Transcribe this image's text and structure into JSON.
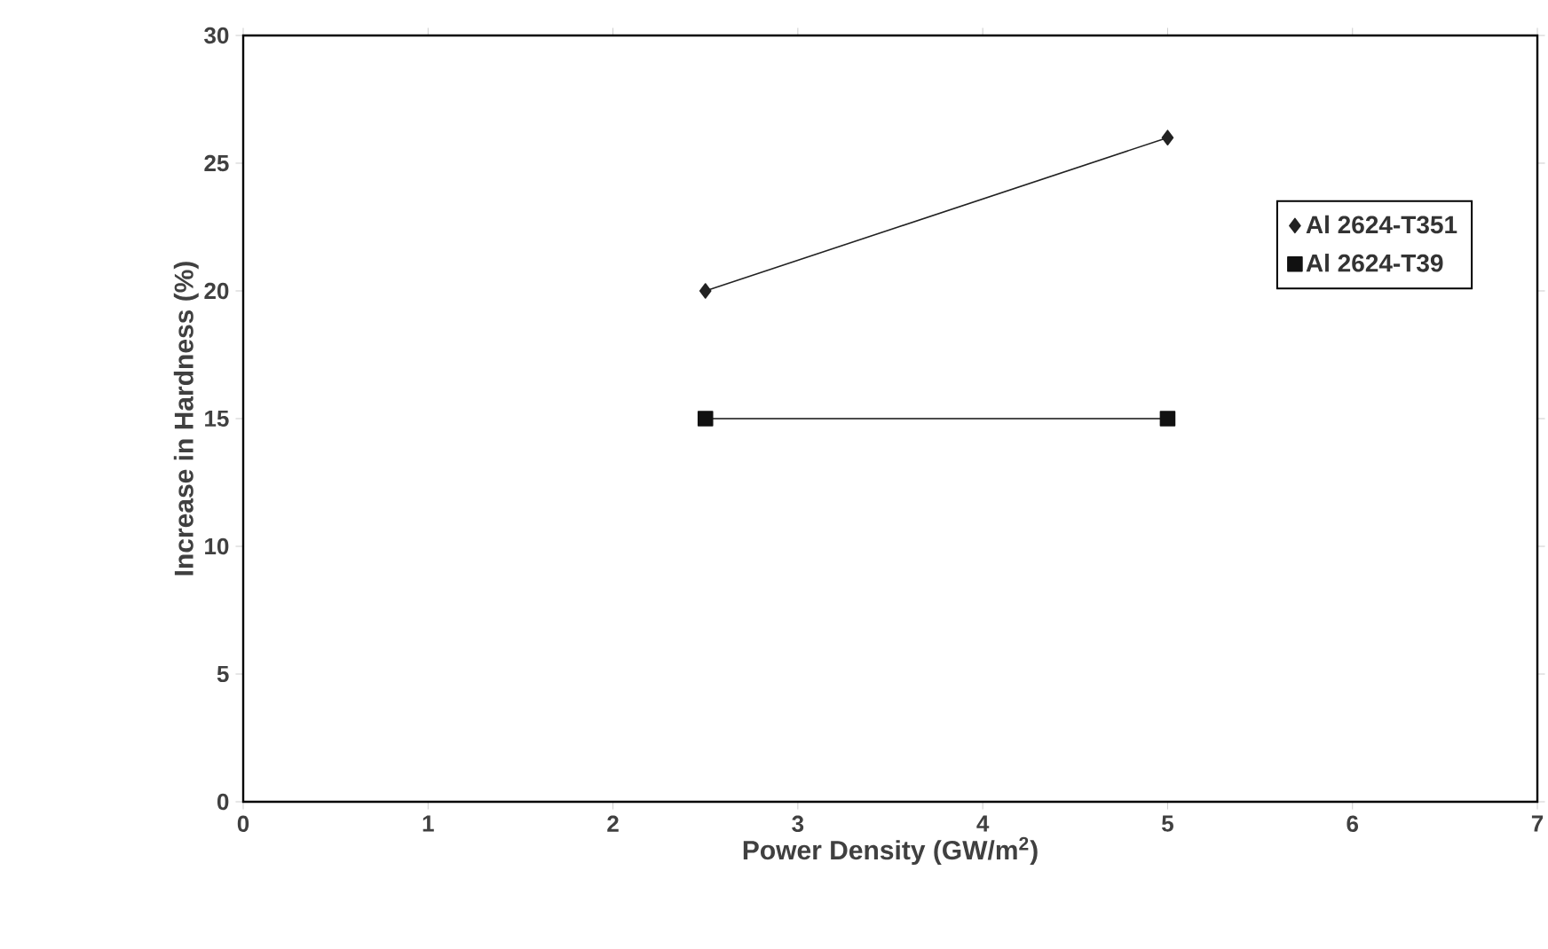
{
  "chart_data": {
    "type": "line",
    "xlabel": "Power Density (GW/m$^{2}$)",
    "ylabel": "Increase in Hardness (%)",
    "xlim": [
      0,
      7
    ],
    "xticks": [
      0,
      1,
      2,
      3,
      4,
      5,
      6,
      7
    ],
    "ylim": [
      0,
      30
    ],
    "yticks": [
      0,
      5,
      10,
      15,
      20,
      25,
      30
    ],
    "legend": "right",
    "line_style": "solid",
    "x": [
      2.5,
      5
    ],
    "series": [
      {
        "name": "Al 2624-T351",
        "color": "#222222",
        "marker": "diamond",
        "values": [
          20,
          26
        ]
      },
      {
        "name": "Al 2624-T39",
        "color": "#111111",
        "marker": "square",
        "values": [
          15,
          15
        ]
      }
    ]
  }
}
